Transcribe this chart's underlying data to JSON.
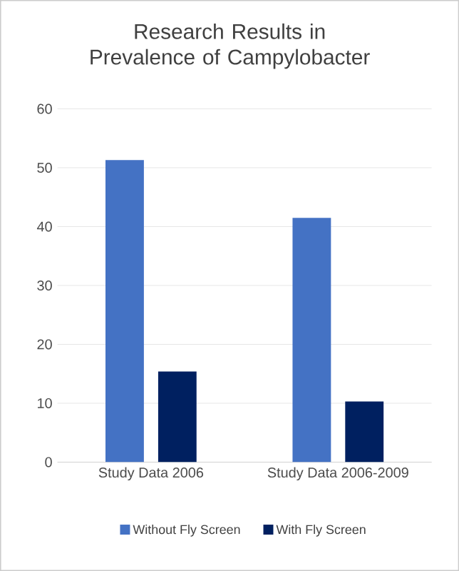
{
  "chart_data": {
    "type": "bar",
    "title": "Research Results in Prevalence of Campylobacter",
    "categories": [
      "Study Data 2006",
      "Study Data 2006-2009"
    ],
    "series": [
      {
        "name": "Without Fly Screen",
        "color": "#4472c4",
        "values": [
          51.3,
          41.5
        ]
      },
      {
        "name": "With Fly Screen",
        "color": "#002060",
        "values": [
          15.4,
          10.3
        ]
      }
    ],
    "ylim": [
      0,
      60
    ],
    "yticks": [
      0,
      10,
      20,
      30,
      40,
      50,
      60
    ],
    "grid": "y",
    "legend": "bottom"
  }
}
